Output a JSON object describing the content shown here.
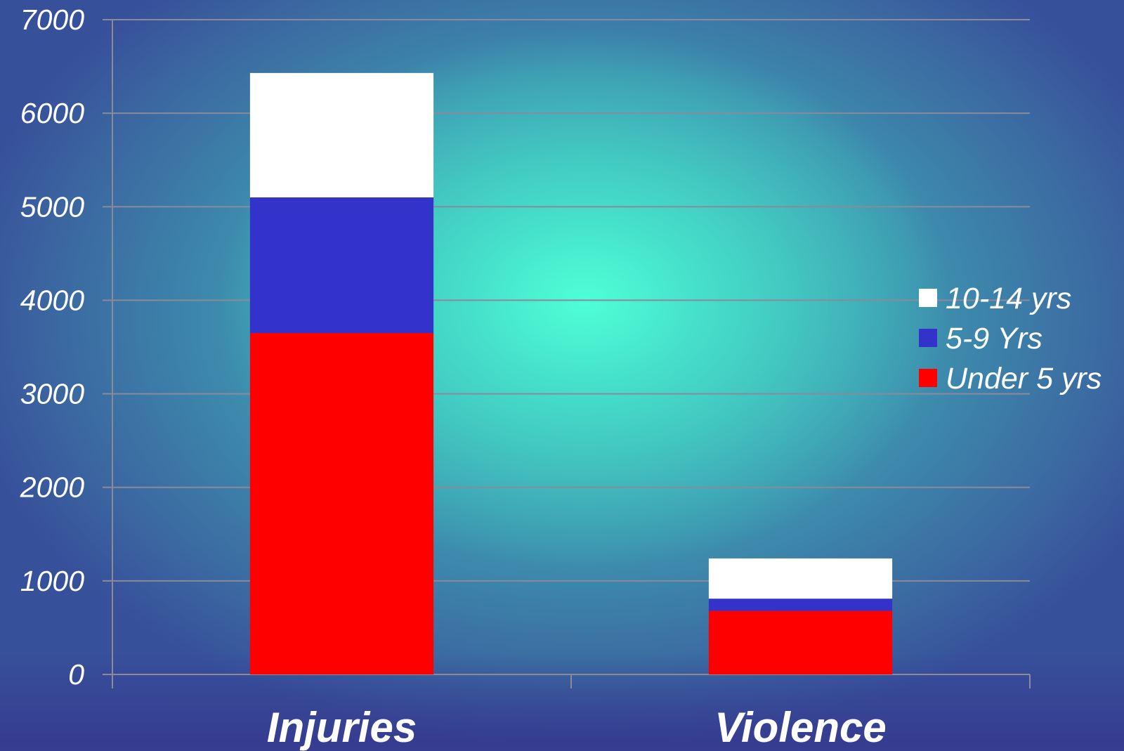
{
  "chart_data": {
    "type": "bar",
    "stacked": true,
    "categories": [
      "Injuries",
      "Violence"
    ],
    "series": [
      {
        "name": "Under 5 yrs",
        "color": "#ff0000",
        "values": [
          3650,
          680
        ]
      },
      {
        "name": "5-9 Yrs",
        "color": "#3333cc",
        "values": [
          1450,
          130
        ]
      },
      {
        "name": "10-14 yrs",
        "color": "#ffffff",
        "values": [
          1330,
          430
        ]
      }
    ],
    "legend_order": [
      "10-14 yrs",
      "5-9 Yrs",
      "Under 5 yrs"
    ],
    "legend_position": "right",
    "ylim": [
      0,
      7000
    ],
    "yticks": [
      "0",
      "1000",
      "2000",
      "3000",
      "4000",
      "5000",
      "6000",
      "7000"
    ],
    "grid": true,
    "title": "",
    "xlabel": "",
    "ylabel": ""
  }
}
